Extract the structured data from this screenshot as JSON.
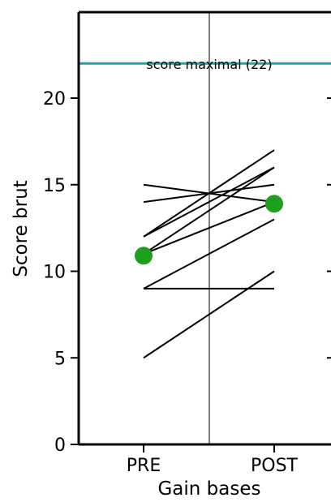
{
  "chart_data": {
    "type": "line",
    "xlabel": "Gain bases",
    "ylabel": "Score brut",
    "categories": [
      "PRE",
      "POST"
    ],
    "ylim": [
      0,
      25
    ],
    "yticks": [
      0,
      5,
      10,
      15,
      20
    ],
    "reference_line": {
      "value": 22,
      "label": "score maximal (22)",
      "color": "#1fa6a6"
    },
    "individual_lines": [
      {
        "values": [
          15,
          14
        ]
      },
      {
        "values": [
          14,
          15
        ]
      },
      {
        "values": [
          12,
          16
        ]
      },
      {
        "values": [
          12,
          17
        ]
      },
      {
        "values": [
          11,
          16
        ]
      },
      {
        "values": [
          11,
          14
        ]
      },
      {
        "values": [
          9,
          13
        ]
      },
      {
        "values": [
          9,
          9
        ]
      },
      {
        "values": [
          5,
          10
        ]
      }
    ],
    "mean_points": {
      "values": [
        10.9,
        13.9
      ],
      "color": "#1ea01e"
    },
    "line_color": "#000000"
  }
}
